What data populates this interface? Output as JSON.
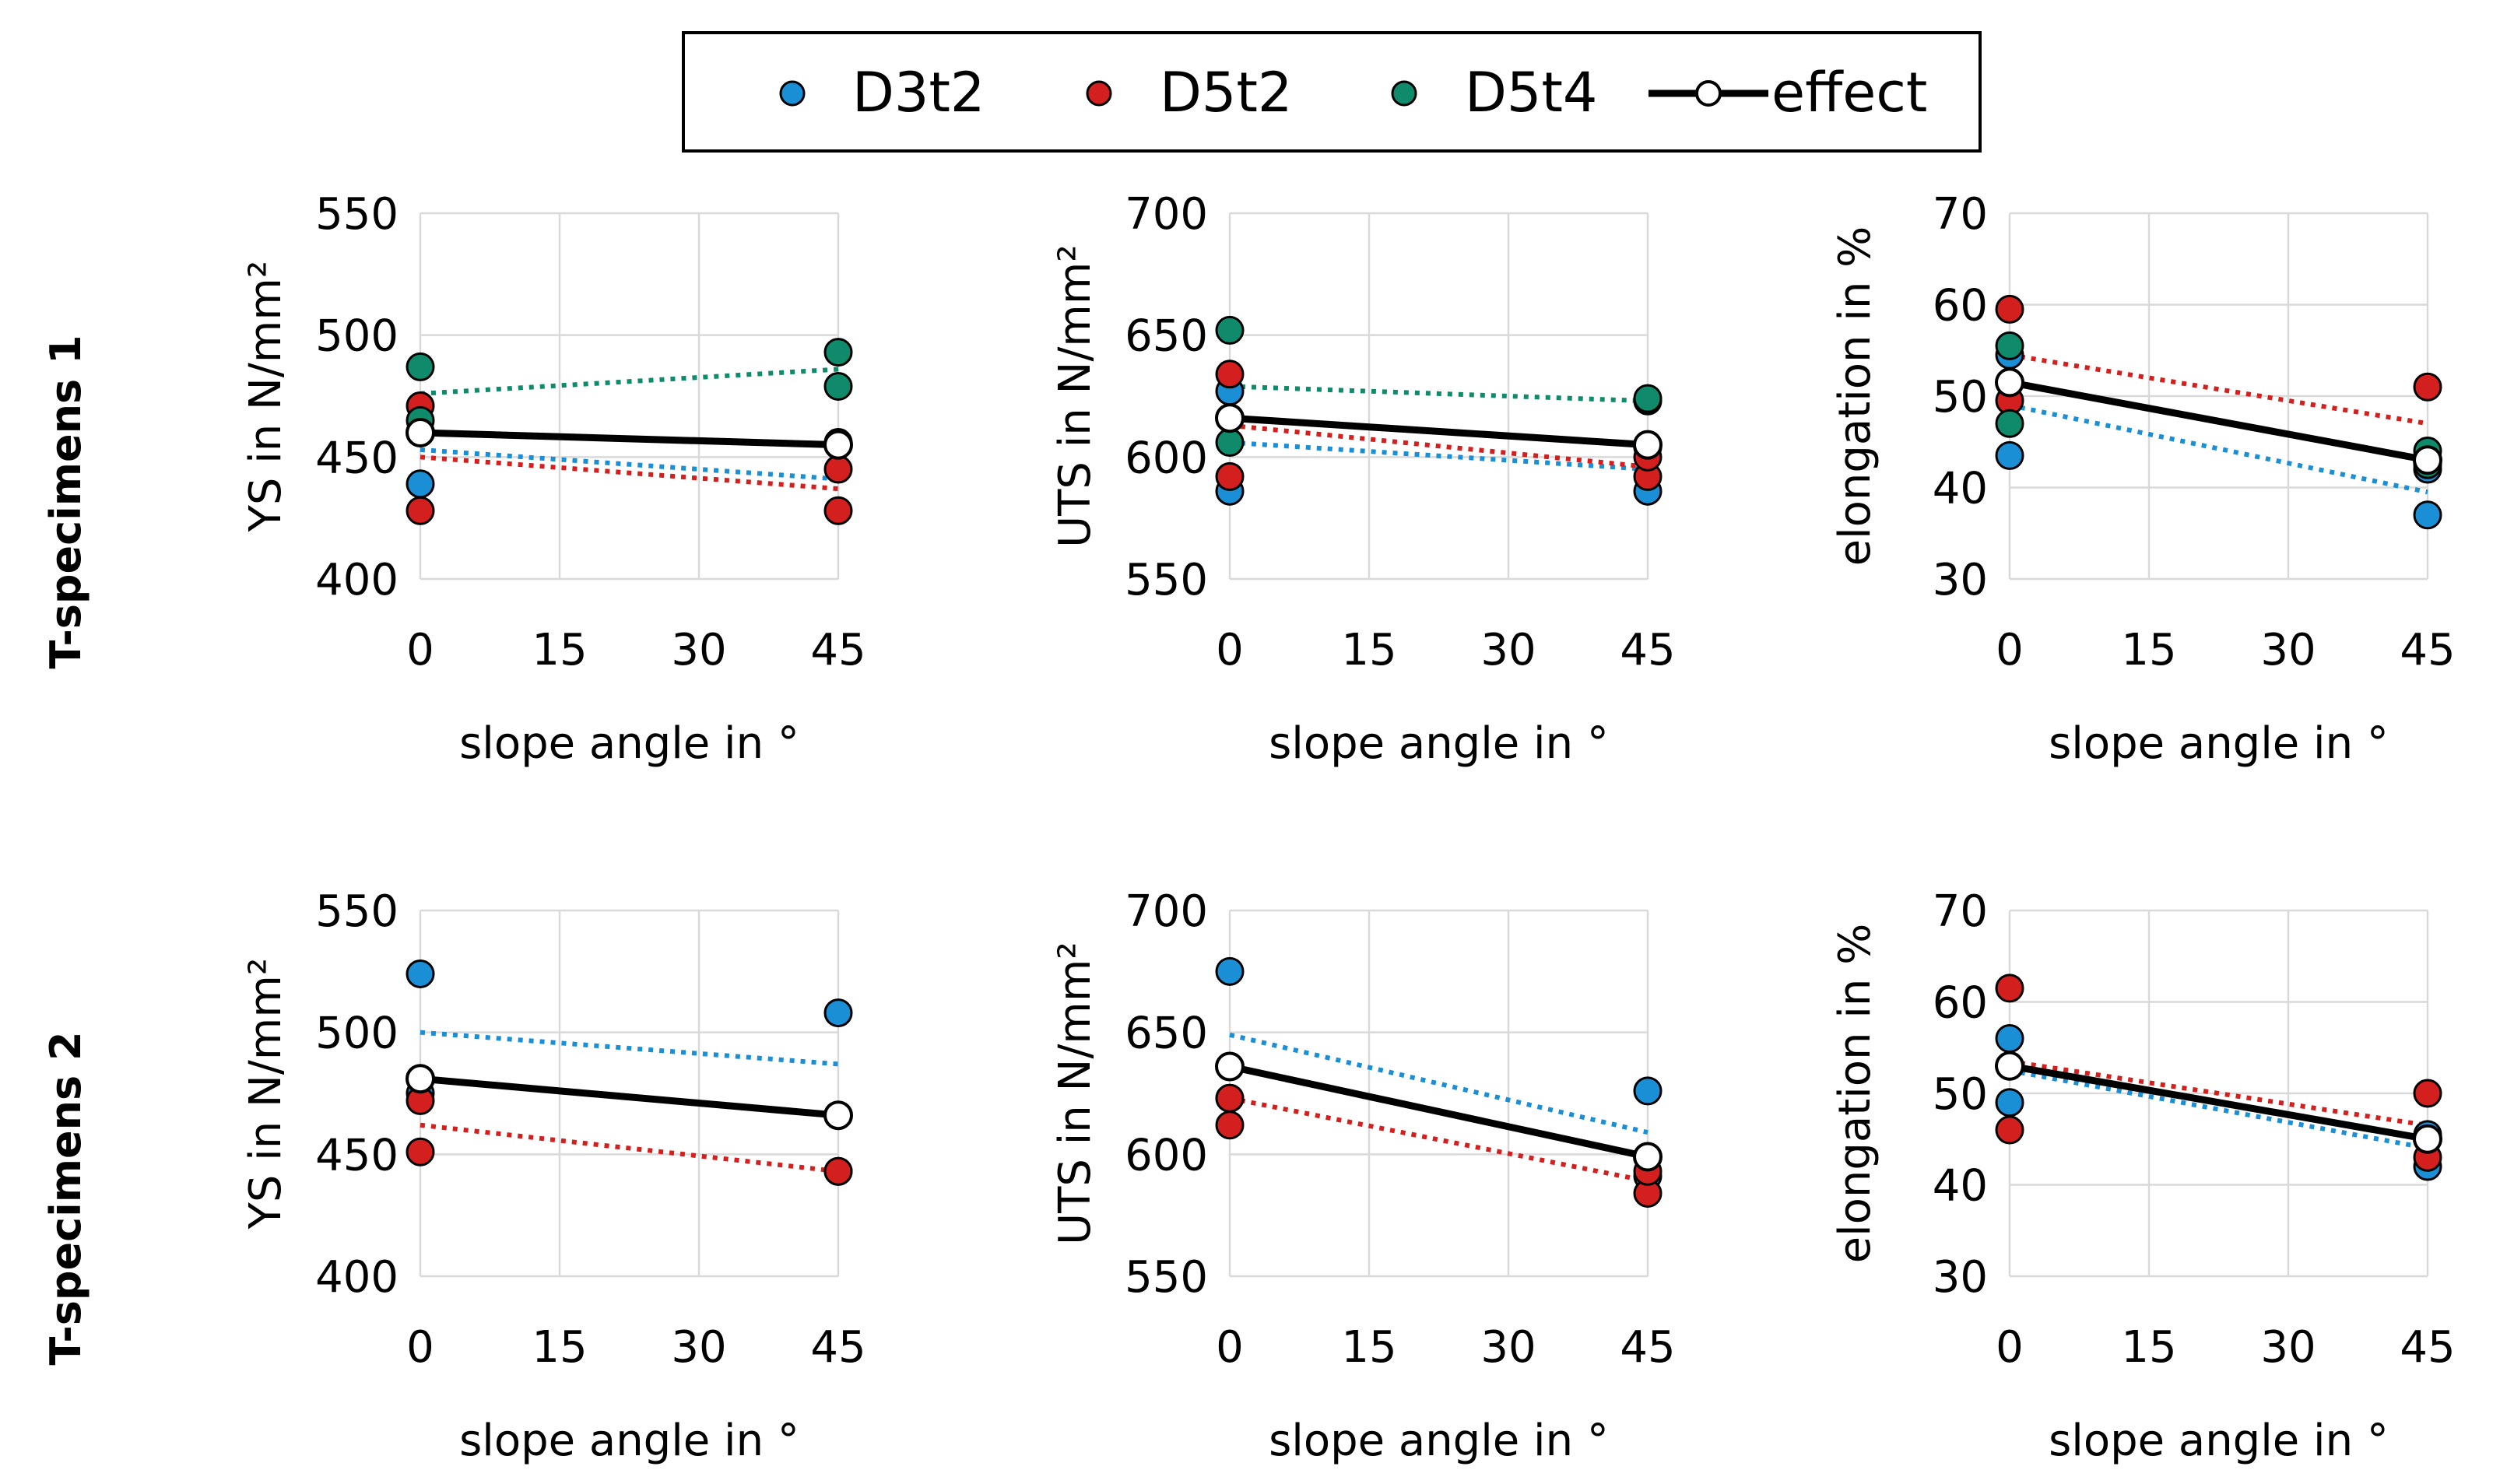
{
  "legend": {
    "items": [
      {
        "key": "D3t2",
        "label": "D3t2",
        "kind": "marker"
      },
      {
        "key": "D5t2",
        "label": "D5t2",
        "kind": "marker"
      },
      {
        "key": "D5t4",
        "label": "D5t4",
        "kind": "marker"
      },
      {
        "key": "effect",
        "label": "effect",
        "kind": "line"
      }
    ]
  },
  "colors": {
    "D3t2": "#1a8fd6",
    "D5t2": "#d41f1f",
    "D5t4": "#0f8a6a",
    "effect": "#000000",
    "grid": "#d9d9d9"
  },
  "rows": [
    {
      "title": "T-specimens 1"
    },
    {
      "title": "T-specimens 2"
    }
  ],
  "chart_data": [
    {
      "type": "scatter",
      "row": 0,
      "col": 0,
      "title": "",
      "xlabel": "slope angle in °",
      "ylabel": "YS in N/mm²",
      "xlim": [
        0,
        45
      ],
      "ylim": [
        400,
        550
      ],
      "xticks": [
        "0",
        "15",
        "30",
        "45"
      ],
      "yticks": [
        "400",
        "450",
        "500",
        "550"
      ],
      "x": [
        0,
        45
      ],
      "series": [
        {
          "name": "D3t2",
          "points": {
            "0": [
              439
            ],
            "45": [
              456
            ]
          },
          "trend": [
            453,
            441
          ]
        },
        {
          "name": "D5t2",
          "points": {
            "0": [
              428,
              471
            ],
            "45": [
              428,
              445
            ]
          },
          "trend": [
            450,
            437
          ]
        },
        {
          "name": "D5t4",
          "points": {
            "0": [
              465,
              487
            ],
            "45": [
              479,
              493
            ]
          },
          "trend": [
            476,
            486
          ]
        },
        {
          "name": "effect",
          "values": [
            460,
            455
          ]
        }
      ]
    },
    {
      "type": "scatter",
      "row": 0,
      "col": 1,
      "title": "",
      "xlabel": "slope angle in °",
      "ylabel": "UTS in N/mm²",
      "xlim": [
        0,
        45
      ],
      "ylim": [
        550,
        700
      ],
      "xticks": [
        "0",
        "15",
        "30",
        "45"
      ],
      "yticks": [
        "550",
        "600",
        "650",
        "700"
      ],
      "x": [
        0,
        45
      ],
      "series": [
        {
          "name": "D3t2",
          "points": {
            "0": [
              586,
              627
            ],
            "45": [
              586,
              604
            ]
          },
          "trend": [
            606,
            595
          ]
        },
        {
          "name": "D5t2",
          "points": {
            "0": [
              592,
              634
            ],
            "45": [
              592,
              600
            ]
          },
          "trend": [
            613,
            596
          ]
        },
        {
          "name": "D5t4",
          "points": {
            "0": [
              606,
              652
            ],
            "45": [
              623,
              624
            ]
          },
          "trend": [
            629,
            623
          ]
        },
        {
          "name": "effect",
          "values": [
            616,
            605
          ]
        }
      ]
    },
    {
      "type": "scatter",
      "row": 0,
      "col": 2,
      "title": "",
      "xlabel": "slope angle in °",
      "ylabel": "elongation in %",
      "xlim": [
        0,
        45
      ],
      "ylim": [
        30,
        70
      ],
      "xticks": [
        "0",
        "15",
        "30",
        "45"
      ],
      "yticks": [
        "30",
        "40",
        "50",
        "60",
        "70"
      ],
      "x": [
        0,
        45
      ],
      "series": [
        {
          "name": "D3t2",
          "points": {
            "0": [
              43.5,
              54.5
            ],
            "45": [
              37,
              42
            ]
          },
          "trend": [
            49,
            39.5
          ]
        },
        {
          "name": "D5t2",
          "points": {
            "0": [
              49.5,
              59.5
            ],
            "45": [
              43,
              51
            ]
          },
          "trend": [
            54.5,
            47
          ]
        },
        {
          "name": "D5t4",
          "points": {
            "0": [
              47,
              55.5
            ],
            "45": [
              42.5,
              44
            ]
          },
          "trend": [
            51.5,
            43
          ]
        },
        {
          "name": "effect",
          "values": [
            51.5,
            43
          ]
        }
      ]
    },
    {
      "type": "scatter",
      "row": 1,
      "col": 0,
      "title": "",
      "xlabel": "slope angle in °",
      "ylabel": "YS in N/mm²",
      "xlim": [
        0,
        45
      ],
      "ylim": [
        400,
        550
      ],
      "xticks": [
        "0",
        "15",
        "30",
        "45"
      ],
      "yticks": [
        "400",
        "450",
        "500",
        "550"
      ],
      "x": [
        0,
        45
      ],
      "series": [
        {
          "name": "D3t2",
          "points": {
            "0": [
              475,
              524
            ],
            "45": [
              466,
              508
            ]
          },
          "trend": [
            500,
            487
          ]
        },
        {
          "name": "D5t2",
          "points": {
            "0": [
              451,
              472
            ],
            "45": [
              443,
              443
            ]
          },
          "trend": [
            462,
            443
          ]
        },
        {
          "name": "effect",
          "values": [
            481,
            466
          ]
        }
      ]
    },
    {
      "type": "scatter",
      "row": 1,
      "col": 1,
      "title": "",
      "xlabel": "slope angle in °",
      "ylabel": "UTS in N/mm²",
      "xlim": [
        0,
        45
      ],
      "ylim": [
        550,
        700
      ],
      "xticks": [
        "0",
        "15",
        "30",
        "45"
      ],
      "yticks": [
        "550",
        "600",
        "650",
        "700"
      ],
      "x": [
        0,
        45
      ],
      "series": [
        {
          "name": "D3t2",
          "points": {
            "0": [
              623,
              675
            ],
            "45": [
              591,
              626
            ]
          },
          "trend": [
            649,
            609
          ]
        },
        {
          "name": "D5t2",
          "points": {
            "0": [
              612,
              623
            ],
            "45": [
              584,
              593
            ]
          },
          "trend": [
            623,
            589
          ]
        },
        {
          "name": "effect",
          "values": [
            636,
            599
          ]
        }
      ]
    },
    {
      "type": "scatter",
      "row": 1,
      "col": 2,
      "title": "",
      "xlabel": "slope angle in °",
      "ylabel": "elongation in %",
      "xlim": [
        0,
        45
      ],
      "ylim": [
        30,
        70
      ],
      "xticks": [
        "0",
        "15",
        "30",
        "45"
      ],
      "yticks": [
        "30",
        "40",
        "50",
        "60",
        "70"
      ],
      "x": [
        0,
        45
      ],
      "series": [
        {
          "name": "D3t2",
          "points": {
            "0": [
              49,
              56
            ],
            "45": [
              42,
              45.5
            ]
          },
          "trend": [
            52.5,
            44
          ]
        },
        {
          "name": "D5t2",
          "points": {
            "0": [
              46,
              61.5
            ],
            "45": [
              43,
              50
            ]
          },
          "trend": [
            53.5,
            46.5
          ]
        },
        {
          "name": "effect",
          "values": [
            53,
            45
          ]
        }
      ]
    }
  ]
}
